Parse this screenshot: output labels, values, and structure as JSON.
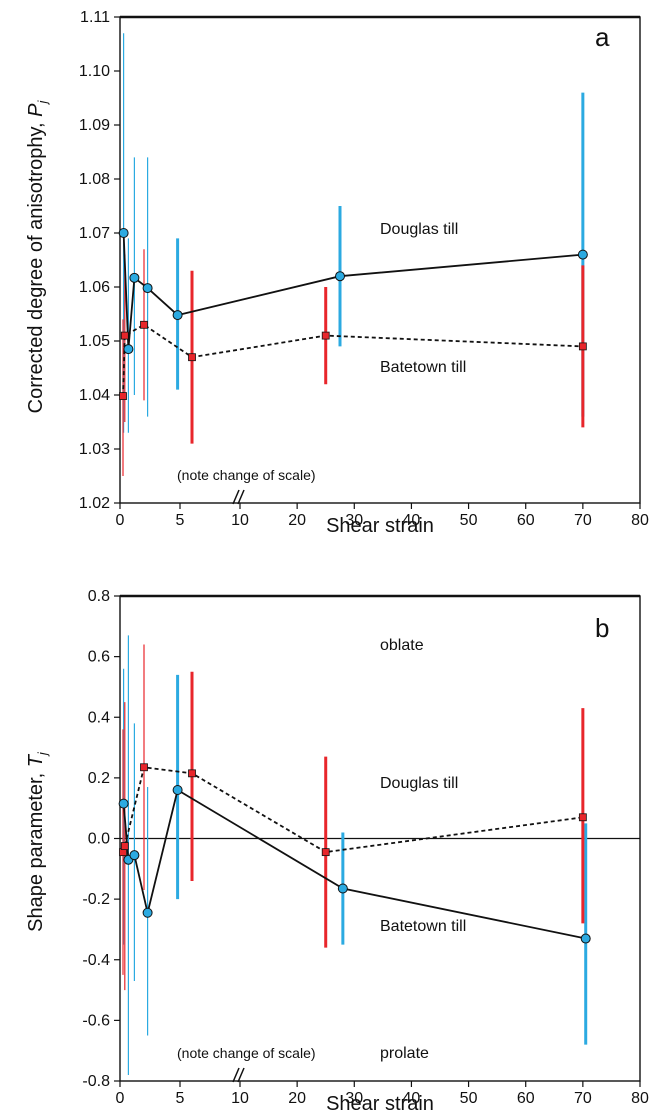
{
  "chart_data": [
    {
      "type": "scatter",
      "panel": "a",
      "xlabel": "Shear strain",
      "ylabel": "Corrected degree of anisotrophy, ",
      "ylabel_var": "P",
      "ylabel_sub": "j",
      "ylim": [
        1.02,
        1.11
      ],
      "y_ticks": [
        "1.02",
        "1.03",
        "1.04",
        "1.05",
        "1.06",
        "1.07",
        "1.08",
        "1.09",
        "1.10",
        "1.11"
      ],
      "x_ticks": [
        "0",
        "5",
        "10",
        "20",
        "30",
        "40",
        "50",
        "60",
        "70",
        "80"
      ],
      "annotations": [
        {
          "id": "douglas",
          "text": "Douglas till",
          "x": 47,
          "y": 1.0695
        },
        {
          "id": "batetown",
          "text": "Batetown till",
          "x": 47,
          "y": 1.0455
        },
        {
          "id": "note",
          "text": "(note change of scale)",
          "x": 7.5,
          "y": 1.0235
        }
      ],
      "series": [
        {
          "name": "Douglas till",
          "color": "#2BAAE1",
          "marker": "circle",
          "line": "solid",
          "points": [
            {
              "x": 0.3,
              "y": 1.07,
              "lo": 1.033,
              "hi": 1.107
            },
            {
              "x": 0.7,
              "y": 1.0485,
              "lo": 1.033,
              "hi": 1.069
            },
            {
              "x": 1.2,
              "y": 1.0617,
              "lo": 1.04,
              "hi": 1.084
            },
            {
              "x": 2.3,
              "y": 1.0598,
              "lo": 1.036,
              "hi": 1.084
            },
            {
              "x": 4.8,
              "y": 1.0548,
              "lo": 1.041,
              "hi": 1.069
            },
            {
              "x": 27.5,
              "y": 1.062,
              "lo": 1.049,
              "hi": 1.075
            },
            {
              "x": 70,
              "y": 1.066,
              "lo": 1.036,
              "hi": 1.096
            }
          ]
        },
        {
          "name": "Batetown till",
          "color": "#E8262B",
          "marker": "square",
          "line": "dashed",
          "points": [
            {
              "x": 0.25,
              "y": 1.0398,
              "lo": 1.025,
              "hi": 1.054
            },
            {
              "x": 0.4,
              "y": 1.051,
              "lo": 1.035,
              "hi": 1.066
            },
            {
              "x": 2.0,
              "y": 1.053,
              "lo": 1.039,
              "hi": 1.067
            },
            {
              "x": 6.0,
              "y": 1.047,
              "lo": 1.031,
              "hi": 1.063
            },
            {
              "x": 25,
              "y": 1.051,
              "lo": 1.042,
              "hi": 1.06
            },
            {
              "x": 70,
              "y": 1.049,
              "lo": 1.034,
              "hi": 1.064
            }
          ]
        }
      ]
    },
    {
      "type": "scatter",
      "panel": "b",
      "xlabel": "Shear strain",
      "ylabel": "Shape parameter, ",
      "ylabel_var": "T",
      "ylabel_sub": "j",
      "ylim": [
        -0.8,
        0.8
      ],
      "y_ticks": [
        "-0.8",
        "-0.6",
        "-0.4",
        "-0.2",
        "0.0",
        "0.2",
        "0.4",
        "0.6",
        "0.8"
      ],
      "x_ticks": [
        "0",
        "5",
        "10",
        "20",
        "30",
        "40",
        "50",
        "60",
        "70",
        "80"
      ],
      "zero_line": true,
      "annotations": [
        {
          "id": "oblate",
          "text": "oblate",
          "x": 47,
          "y": 0.695
        },
        {
          "id": "douglas",
          "text": "Douglas till",
          "x": 47,
          "y": 0.115
        },
        {
          "id": "batetown",
          "text": "Batetown till",
          "x": 47,
          "y": -0.39
        },
        {
          "id": "prolate",
          "text": "prolate",
          "x": 47,
          "y": -0.725
        },
        {
          "id": "note",
          "text": "(note change of scale)",
          "x": 7.5,
          "y": -0.725
        }
      ],
      "series": [
        {
          "name": "Douglas till",
          "color": "#2BAAE1",
          "marker": "circle",
          "line": "solid",
          "points": [
            {
              "x": 0.3,
              "y": 0.115,
              "lo": -0.35,
              "hi": 0.56
            },
            {
              "x": 0.7,
              "y": -0.07,
              "lo": -0.78,
              "hi": 0.67
            },
            {
              "x": 1.2,
              "y": -0.055,
              "lo": -0.47,
              "hi": 0.38
            },
            {
              "x": 2.3,
              "y": -0.245,
              "lo": -0.65,
              "hi": 0.17
            },
            {
              "x": 4.8,
              "y": 0.16,
              "lo": -0.2,
              "hi": 0.54
            },
            {
              "x": 28,
              "y": -0.165,
              "lo": -0.35,
              "hi": 0.02
            },
            {
              "x": 70.5,
              "y": -0.33,
              "lo": -0.68,
              "hi": 0.05
            }
          ]
        },
        {
          "name": "Batetown till",
          "color": "#E8262B",
          "marker": "square",
          "line": "dashed",
          "points": [
            {
              "x": 0.25,
              "y": -0.045,
              "lo": -0.45,
              "hi": 0.36
            },
            {
              "x": 0.4,
              "y": -0.025,
              "lo": -0.5,
              "hi": 0.45
            },
            {
              "x": 2.0,
              "y": 0.235,
              "lo": -0.17,
              "hi": 0.64
            },
            {
              "x": 6.0,
              "y": 0.215,
              "lo": -0.14,
              "hi": 0.55
            },
            {
              "x": 25,
              "y": -0.045,
              "lo": -0.36,
              "hi": 0.27
            },
            {
              "x": 70,
              "y": 0.07,
              "lo": -0.28,
              "hi": 0.43
            }
          ]
        }
      ]
    }
  ]
}
